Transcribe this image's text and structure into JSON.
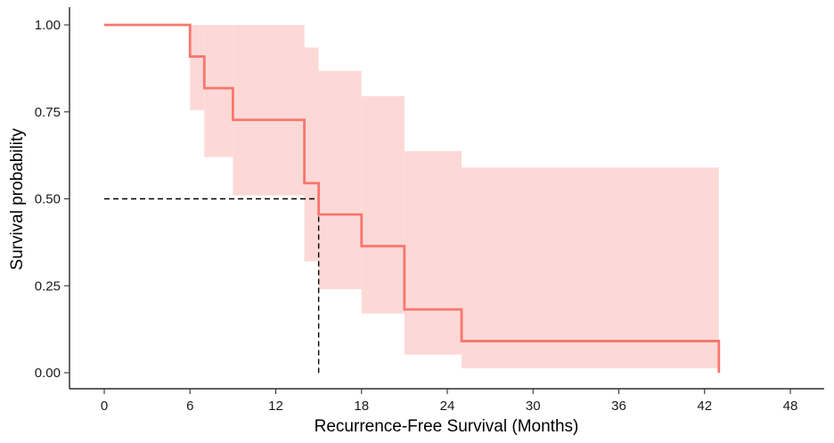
{
  "chart_data": {
    "type": "line",
    "subtype": "kaplan-meier survival curve with confidence band",
    "xlabel": "Recurrence-Free Survival (Months)",
    "ylabel": "Survival probability",
    "xlim": [
      0,
      48
    ],
    "ylim": [
      0,
      1
    ],
    "x_ticks": [
      0,
      6,
      12,
      18,
      24,
      30,
      36,
      42,
      48
    ],
    "y_ticks": [
      0,
      0.25,
      0.5,
      0.75,
      1
    ],
    "y_tick_labels": [
      "0.00",
      "0.25",
      "0.50",
      "0.75",
      "1.00"
    ],
    "grid": false,
    "legend": "none",
    "colors": {
      "curve": "#f8766d",
      "band": "#fcd9d7",
      "median": "#000000",
      "axis": "#000000"
    },
    "series": [
      {
        "steps": [
          {
            "x": 0,
            "y": 1.0,
            "lower": 1.0,
            "upper": 1.0
          },
          {
            "x": 6,
            "y": 0.909,
            "lower": 0.755,
            "upper": 1.0
          },
          {
            "x": 7,
            "y": 0.818,
            "lower": 0.62,
            "upper": 1.0
          },
          {
            "x": 9,
            "y": 0.727,
            "lower": 0.51,
            "upper": 1.0
          },
          {
            "x": 14,
            "y": 0.545,
            "lower": 0.32,
            "upper": 0.935
          },
          {
            "x": 15,
            "y": 0.455,
            "lower": 0.24,
            "upper": 0.868
          },
          {
            "x": 18,
            "y": 0.364,
            "lower": 0.17,
            "upper": 0.795
          },
          {
            "x": 21,
            "y": 0.182,
            "lower": 0.052,
            "upper": 0.637
          },
          {
            "x": 25,
            "y": 0.091,
            "lower": 0.013,
            "upper": 0.59
          },
          {
            "x": 43,
            "y": 0.0
          }
        ],
        "band_end_x": 43
      }
    ],
    "median": {
      "x": 15,
      "y": 0.5
    }
  }
}
